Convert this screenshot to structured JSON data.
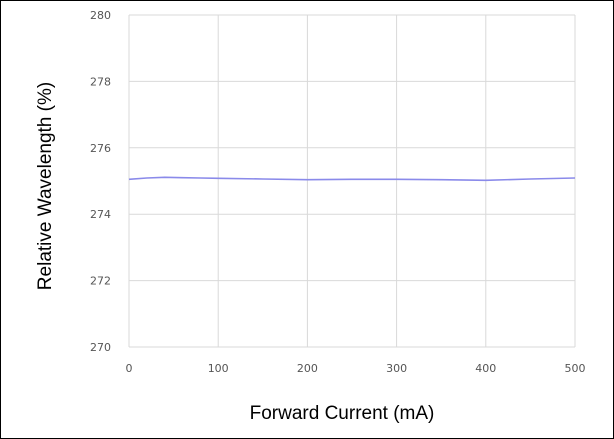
{
  "chart_data": {
    "type": "line",
    "xlabel": "Forward Current (mA)",
    "ylabel": "Relative Wavelength (%)",
    "xlim": [
      0,
      500
    ],
    "ylim": [
      270,
      280
    ],
    "x_ticks": [
      "0",
      "100",
      "200",
      "300",
      "400",
      "500"
    ],
    "y_ticks": [
      "270",
      "272",
      "274",
      "276",
      "278",
      "280"
    ],
    "grid": true,
    "series": [
      {
        "color": "#8a8aea",
        "x": [
          0,
          20,
          40,
          60,
          80,
          100,
          150,
          200,
          250,
          300,
          350,
          400,
          450,
          500
        ],
        "y": [
          275.05,
          275.09,
          275.11,
          275.1,
          275.09,
          275.08,
          275.06,
          275.04,
          275.05,
          275.05,
          275.04,
          275.02,
          275.06,
          275.09
        ]
      }
    ]
  }
}
